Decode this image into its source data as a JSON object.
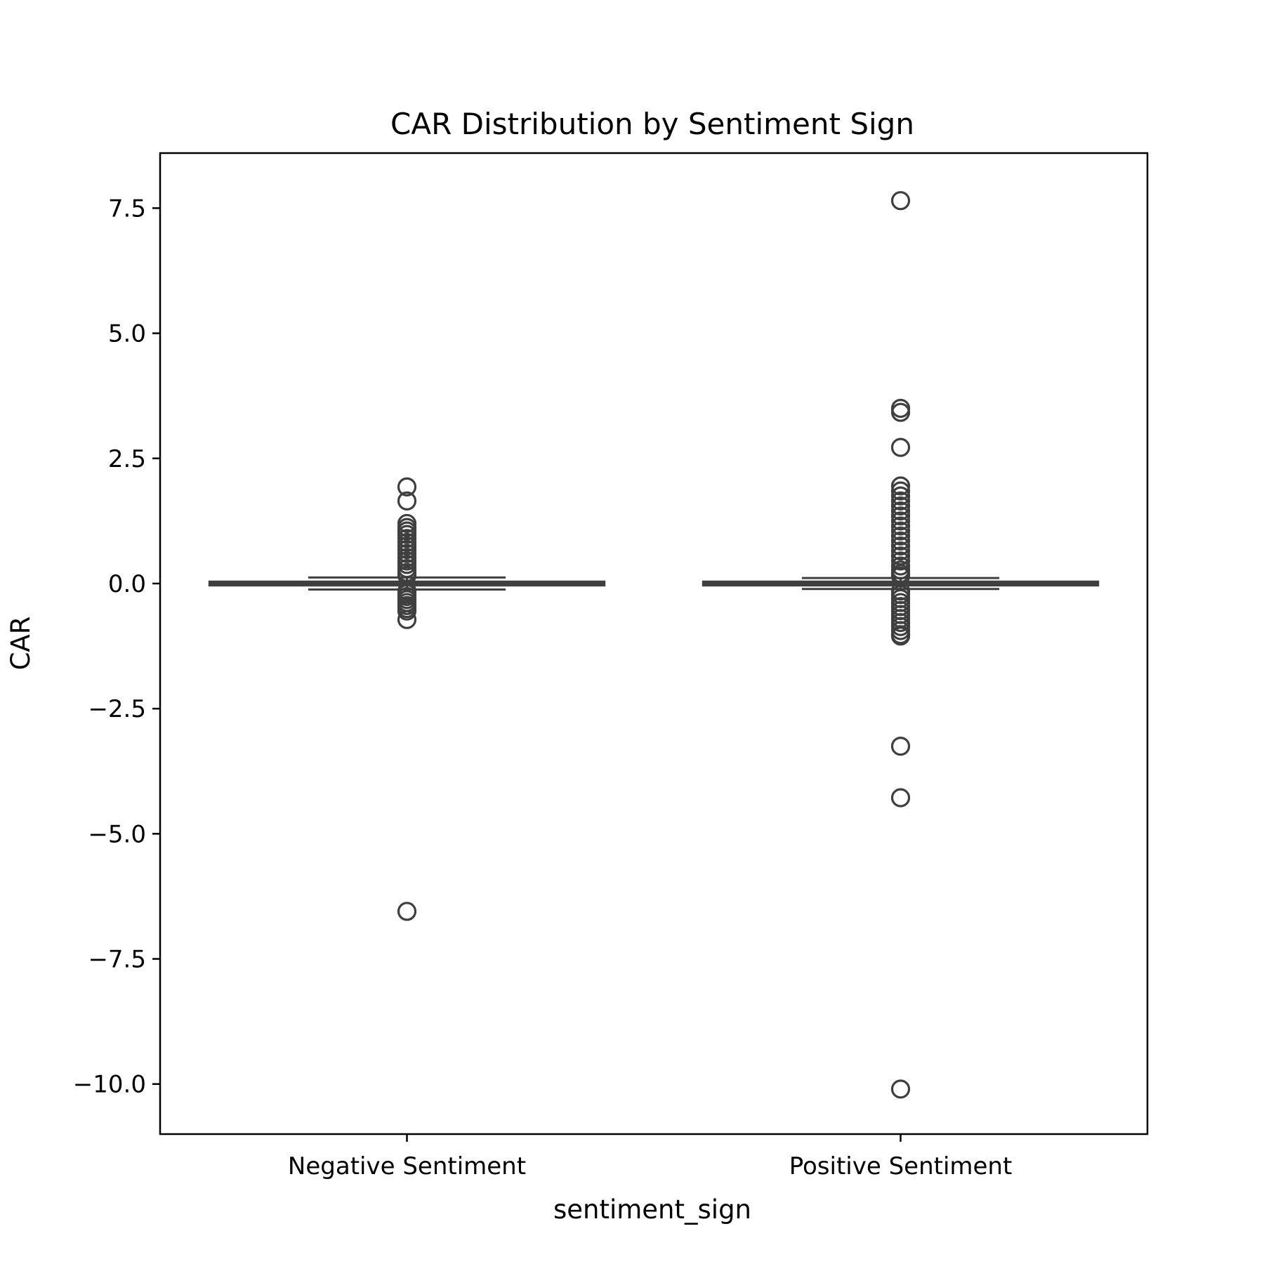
{
  "chart_data": {
    "type": "box",
    "title": "CAR Distribution by Sentiment Sign",
    "xlabel": "sentiment_sign",
    "ylabel": "CAR",
    "ylim": [
      -11.0,
      8.6
    ],
    "yticks": [
      7.5,
      5.0,
      2.5,
      0.0,
      -2.5,
      -5.0,
      -7.5,
      -10.0
    ],
    "ytick_labels": [
      "7.5",
      "5.0",
      "2.5",
      "0.0",
      "−2.5",
      "−5.0",
      "−7.5",
      "−10.0"
    ],
    "categories": [
      "Negative Sentiment",
      "Positive Sentiment"
    ],
    "grid": false,
    "colors": {
      "box": "#3f3f3f",
      "axes": "#000000",
      "background": "#ffffff"
    },
    "boxes": [
      {
        "category": "Negative Sentiment",
        "q1": -0.01,
        "median": 0.0,
        "q3": 0.01,
        "whisker_low": -0.12,
        "whisker_high": 0.12,
        "outliers": [
          1.93,
          1.65,
          1.2,
          1.12,
          1.05,
          0.98,
          0.9,
          0.82,
          0.75,
          0.68,
          0.6,
          0.52,
          0.45,
          0.38,
          0.3,
          0.22,
          0.16,
          -0.15,
          -0.2,
          -0.26,
          -0.32,
          -0.38,
          -0.44,
          -0.5,
          -0.55,
          -0.72,
          -6.55
        ]
      },
      {
        "category": "Positive Sentiment",
        "q1": -0.01,
        "median": 0.0,
        "q3": 0.01,
        "whisker_low": -0.11,
        "whisker_high": 0.11,
        "outliers": [
          7.65,
          3.5,
          3.42,
          2.72,
          1.95,
          1.85,
          1.75,
          1.65,
          1.55,
          1.45,
          1.35,
          1.25,
          1.15,
          1.05,
          0.95,
          0.85,
          0.75,
          0.65,
          0.55,
          0.45,
          0.35,
          0.27,
          0.2,
          0.15,
          -0.15,
          -0.22,
          -0.3,
          -0.38,
          -0.46,
          -0.54,
          -0.62,
          -0.7,
          -0.78,
          -0.86,
          -0.94,
          -1.02,
          -1.05,
          -3.25,
          -4.28,
          -10.1
        ]
      }
    ]
  }
}
